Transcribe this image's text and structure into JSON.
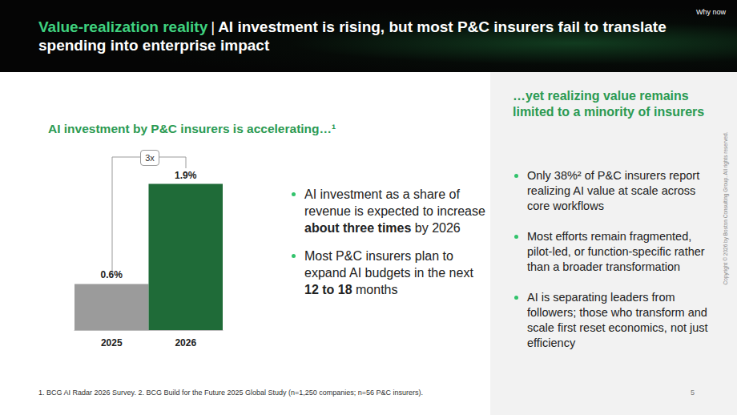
{
  "header": {
    "title_label": "Value-realization reality",
    "title_separator": "|",
    "title_text": "AI investment is rising, but most P&C insurers fail to translate spending into enterprise impact",
    "section": "Why now"
  },
  "chart_data": {
    "type": "bar",
    "title": "AI investment by P&C insurers is accelerating…¹",
    "categories": [
      "2025",
      "2026"
    ],
    "values": [
      0.6,
      1.9
    ],
    "value_labels": [
      "0.6%",
      "1.9%"
    ],
    "colors": [
      "#9b9b9b",
      "#1f6b38"
    ],
    "ylim": [
      0,
      2
    ],
    "yticks": [
      0,
      2
    ],
    "grid": false,
    "data_labels": true,
    "tick_labels": "x",
    "annotation": "3x"
  },
  "left_bullets": [
    [
      {
        "text": "AI investment as a share of revenue is expected to increase "
      },
      {
        "text": "about three times",
        "bold": true
      },
      {
        "text": " by 2026"
      }
    ],
    [
      {
        "text": "Most P&C insurers plan to expand AI budgets in the next "
      },
      {
        "text": "12 to 18",
        "bold": true
      },
      {
        "text": " months"
      }
    ]
  ],
  "right_panel": {
    "title": "…yet realizing value remains limited to a minority of insurers",
    "bullets": [
      "Only 38%² of P&C insurers report realizing AI value at scale across core workflows",
      "Most efforts remain fragmented, pilot-led, or function-specific rather than a broader transformation",
      "AI is separating leaders from followers; those who transform and scale first reset economics, not just efficiency"
    ]
  },
  "footer": {
    "note": "1. BCG AI Radar 2026 Survey. 2. BCG Build for the Future 2025 Global Study (n=1,250 companies; n=56 P&C insurers).",
    "page": "5",
    "copyright": "Copyright © 2026 by Boston Consulting Group. All rights reserved."
  }
}
